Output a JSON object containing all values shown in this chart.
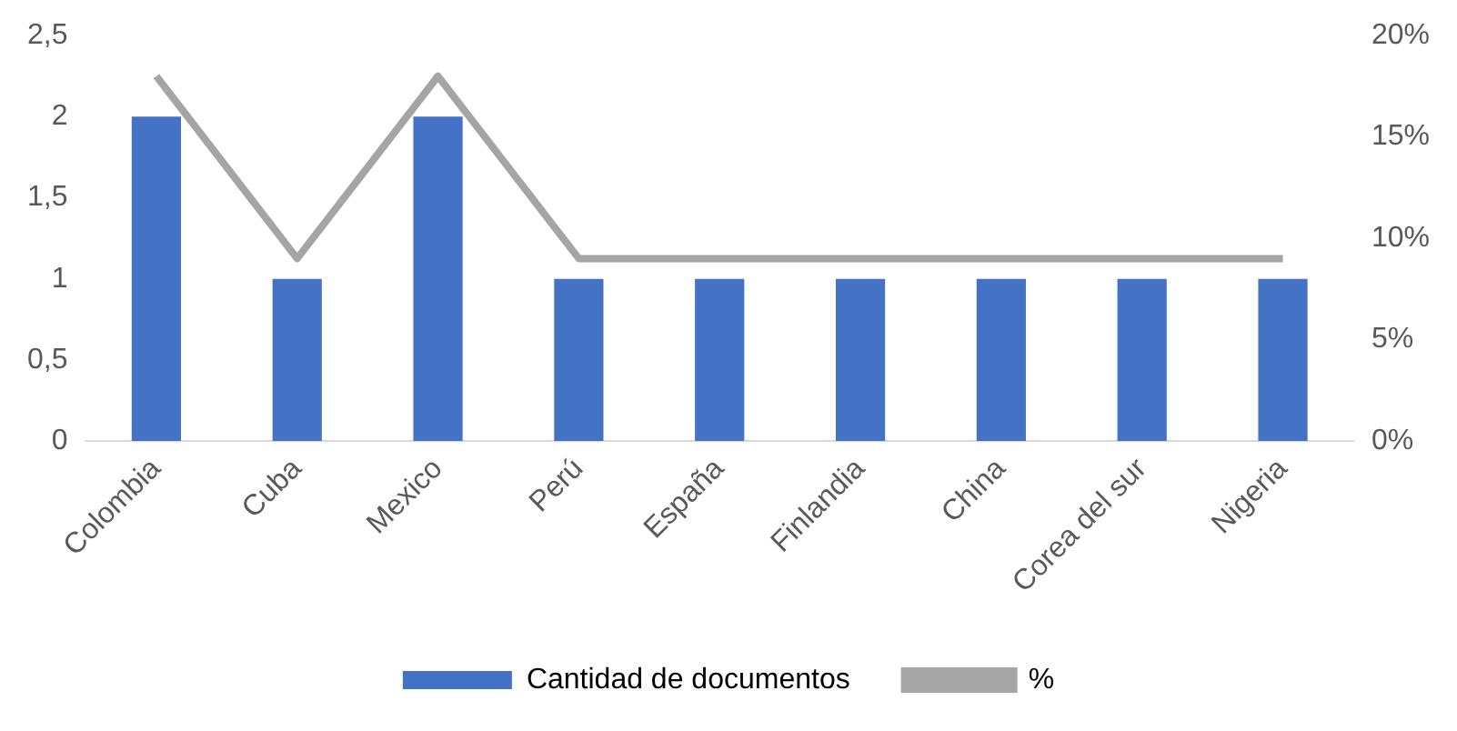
{
  "chart_data": {
    "type": "bar",
    "categories": [
      "Colombia",
      "Cuba",
      "Mexico",
      "Perú",
      "España",
      "Finlandia",
      "China",
      "Corea del sur",
      "Nigeria"
    ],
    "series": [
      {
        "name": "Cantidad de documentos",
        "color": "#4472c4",
        "values": [
          2,
          1,
          2,
          1,
          1,
          1,
          1,
          1,
          1
        ]
      },
      {
        "name": "%",
        "type": "line",
        "axis": "y2",
        "color": "#a5a5a5",
        "marker": "none",
        "values": [
          18,
          9,
          18,
          9,
          9,
          9,
          9,
          9,
          9
        ]
      }
    ],
    "ylim": [
      0,
      2.5
    ],
    "yticks": [
      0,
      {
        "value": 0.5,
        "label": "0,5"
      },
      1,
      {
        "value": 1.5,
        "label": "1,5"
      },
      2,
      {
        "value": 2.5,
        "label": "2,5"
      }
    ],
    "y2lim": [
      0,
      20
    ],
    "y2ticks": [
      {
        "value": 0,
        "label": "0%"
      },
      {
        "value": 5,
        "label": "5%"
      },
      {
        "value": 10,
        "label": "10%"
      },
      {
        "value": 15,
        "label": "15%"
      },
      {
        "value": 20,
        "label": "20%"
      }
    ],
    "grid": false,
    "legend": "bottom"
  }
}
